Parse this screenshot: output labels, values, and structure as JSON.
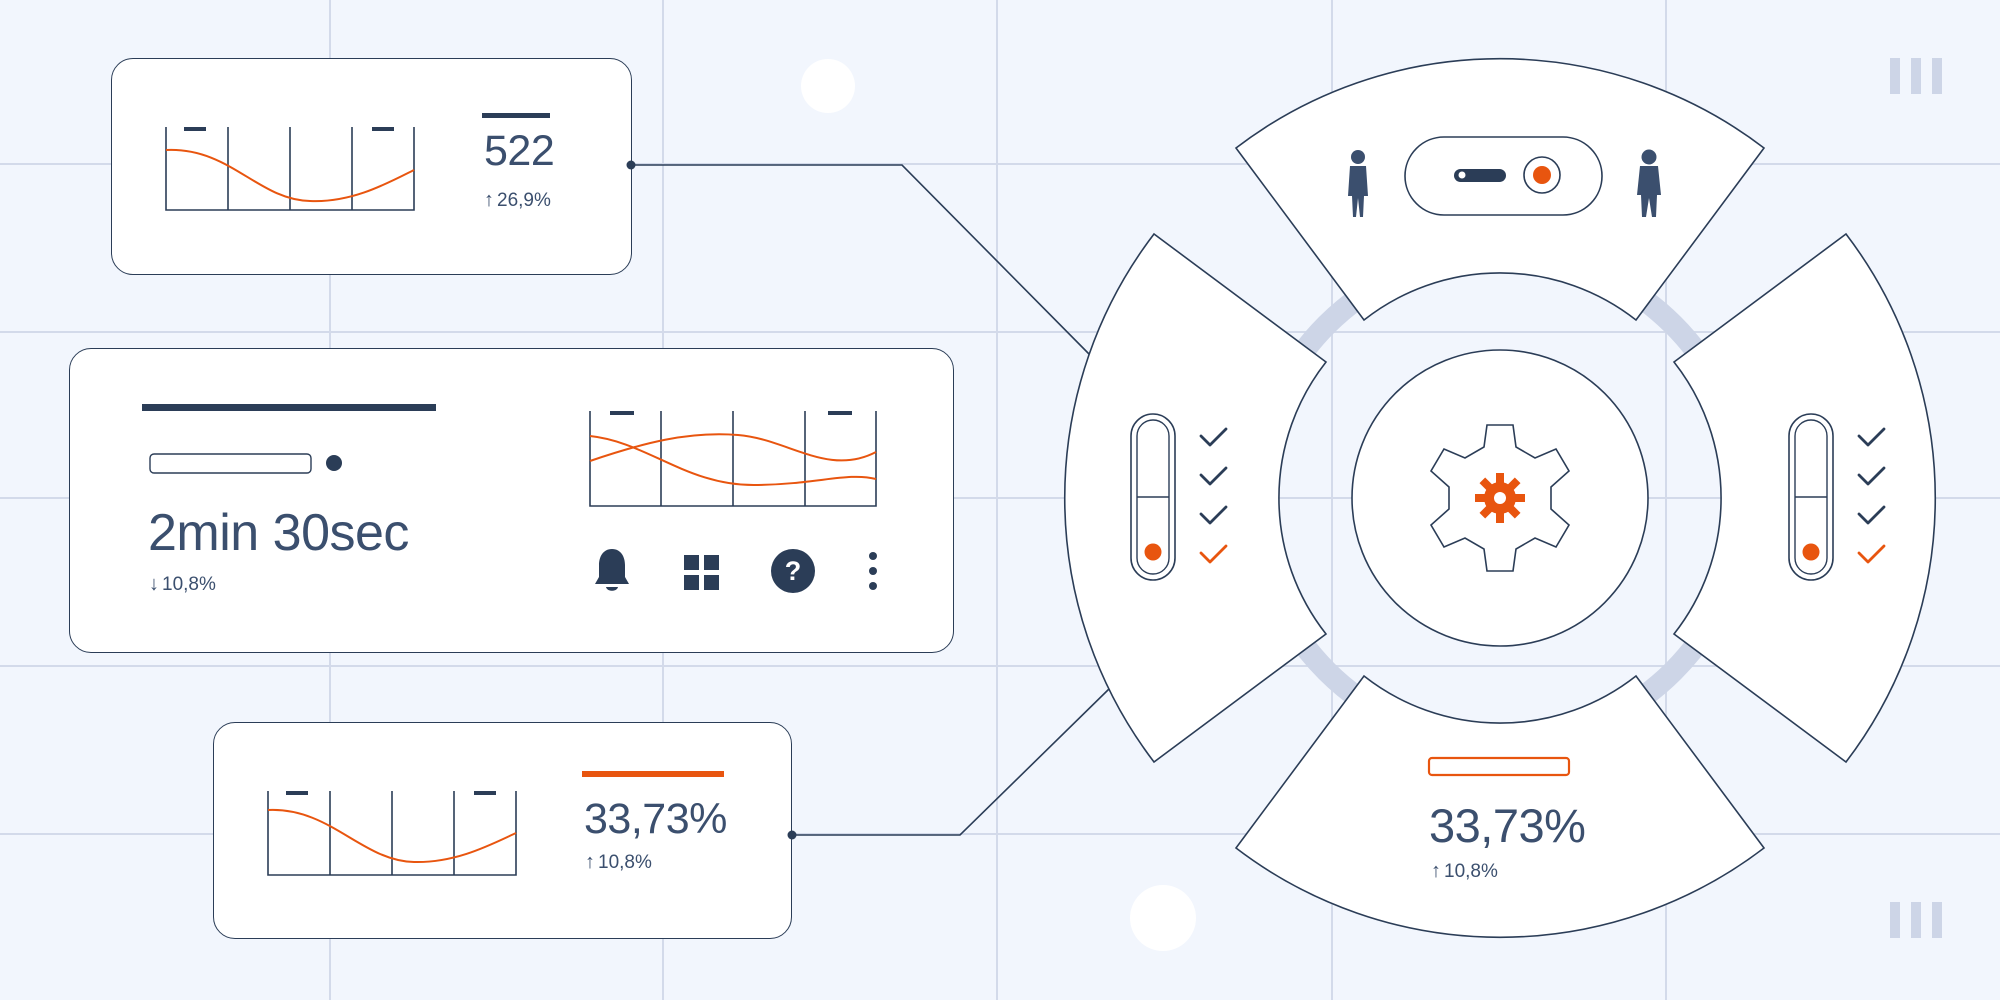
{
  "colors": {
    "background": "#f2f6fd",
    "grid": "#d3daea",
    "ink": "#2b3d57",
    "text": "#3b4f6e",
    "accent": "#e8550f",
    "ring": "#cdd5e7",
    "card": "#ffffff"
  },
  "card_top": {
    "value": "522",
    "delta": "26,9%",
    "delta_icon": "arrow-up-icon"
  },
  "card_middle": {
    "value": "2min 30sec",
    "delta": "10,8%",
    "delta_icon": "arrow-down-icon",
    "icons": [
      "bell-icon",
      "apps-grid-icon",
      "help-icon",
      "more-vert-icon"
    ]
  },
  "card_bottom": {
    "value": "33,73%",
    "delta": "10,8%",
    "delta_icon": "arrow-up-icon"
  },
  "wheel": {
    "center_icon": "gear-icon",
    "top_icons": [
      "person-icon",
      "toggle-switch-icon",
      "person-icon"
    ],
    "left_checklist": [
      "check",
      "check",
      "check",
      "check-accent"
    ],
    "right_checklist": [
      "check",
      "check",
      "check",
      "check-accent"
    ],
    "bottom_value": "33,73%",
    "bottom_delta": "10,8%",
    "bottom_delta_icon": "arrow-up-icon"
  }
}
